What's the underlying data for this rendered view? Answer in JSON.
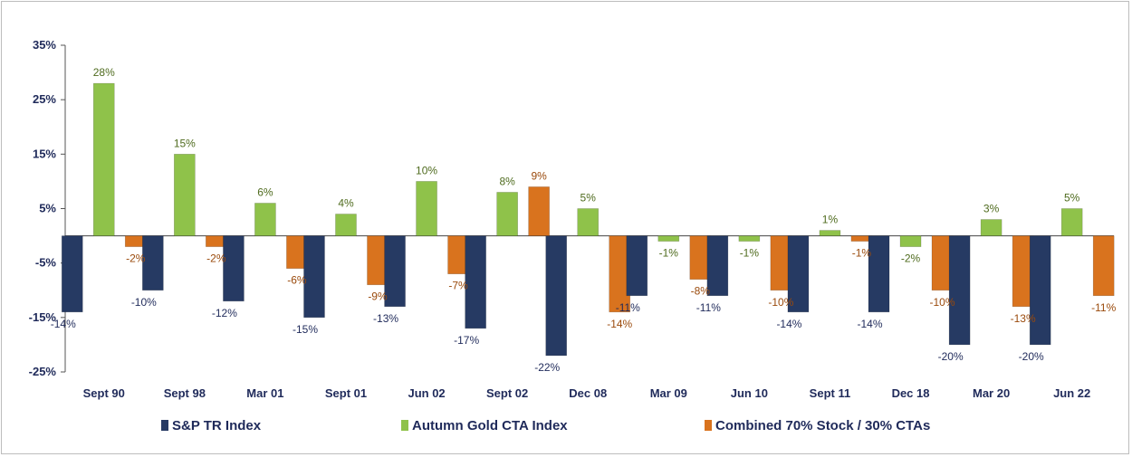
{
  "chart_data": {
    "type": "bar",
    "categories": [
      "Sept 90",
      "Sept 98",
      "Mar 01",
      "Sept 01",
      "Jun 02",
      "Sept 02",
      "Dec 08",
      "Mar 09",
      "Jun 10",
      "Sept 11",
      "Dec 18",
      "Mar 20",
      "Jun 22"
    ],
    "series": [
      {
        "name": "S&P TR Index",
        "color": "#263a63",
        "values": [
          -14,
          -10,
          -12,
          -15,
          -13,
          -17,
          -22,
          -11,
          -11,
          -14,
          -14,
          -20,
          -20
        ],
        "labels": [
          "-14%",
          "-10%",
          "-12%",
          "-15%",
          "-13%",
          "-17%",
          "-22%",
          "-11%",
          "-11%",
          "-14%",
          "-14%",
          "-20%",
          "-20%"
        ]
      },
      {
        "name": "Autumn Gold CTA Index",
        "color": "#8fc24a",
        "values": [
          28,
          15,
          6,
          4,
          10,
          8,
          5,
          -1,
          -1,
          1,
          -2,
          3,
          5
        ],
        "labels": [
          "28%",
          "15%",
          "6%",
          "4%",
          "10%",
          "8%",
          "5%",
          "-1%",
          "-1%",
          "1%",
          "-2%",
          "3%",
          "5%"
        ]
      },
      {
        "name": "Combined 70% Stock / 30% CTAs",
        "color": "#d9731e",
        "values": [
          -2,
          -2,
          -6,
          -9,
          -7,
          9,
          -14,
          -8,
          -10,
          -1,
          -10,
          -13,
          -11
        ],
        "labels": [
          "-2%",
          "-2%",
          "-6%",
          "-9%",
          "-7%",
          "9%",
          "-14%",
          "-8%",
          "-10%",
          "-1%",
          "-10%",
          "-13%",
          "-11%"
        ]
      }
    ],
    "yticks": [
      35,
      25,
      15,
      5,
      -5,
      -15,
      -25
    ],
    "ytick_labels": [
      "35%",
      "25%",
      "15%",
      "5%",
      "-5%",
      "-15%",
      "-25%"
    ],
    "ylim": [
      -25,
      35
    ],
    "grid": false,
    "legend_position": "bottom"
  }
}
